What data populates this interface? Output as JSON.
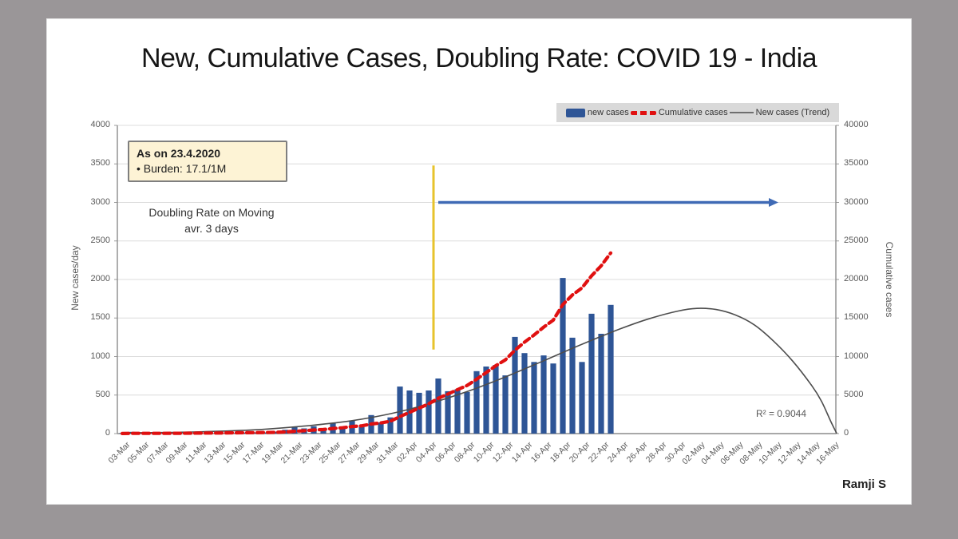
{
  "slide": {
    "title": "New, Cumulative Cases, Doubling Rate: COVID 19 - India",
    "author": "Ramji S"
  },
  "annotation_box": {
    "line1": "As on 23.4.2020",
    "line2": "• Burden: 17.1/1M"
  },
  "doubling_note": {
    "line1": "Doubling Rate on Moving",
    "line2": "avr. 3 days"
  },
  "r_squared_label": "R² = 0.9044",
  "legend": {
    "position": "top-right",
    "items": [
      {
        "label": "new cases",
        "swatch": "blue-bar"
      },
      {
        "label": "Cumulative cases",
        "swatch": "red-dashed-line"
      },
      {
        "label": "New cases (Trend)",
        "swatch": "gray-line"
      }
    ]
  },
  "colors": {
    "bar": "#2e5596",
    "cumulative_line": "#e01010",
    "trend_line": "#4d4d4d",
    "yellow_marker_line": "#e7c32c",
    "arrow": "#3f6ab5",
    "legend_bg": "#d9d9d9",
    "annotation_bg": "#fdf3d5",
    "gridline": "#dcdcdc",
    "axis_text": "#595959",
    "slide_bg": "#ffffff",
    "canvas_bg": "#9a9698"
  },
  "chart_data": {
    "type": "combo (bar + line, dual axis)",
    "title": "New, Cumulative Cases, Doubling Rate: COVID 19 - India",
    "xlabel": "",
    "ylabel_left": "New cases/day",
    "ylabel_right": "Cumulative cases",
    "grid": "horizontal gridlines on",
    "left_axis": {
      "range": [
        0,
        4000
      ],
      "ticks": [
        0,
        500,
        1000,
        1500,
        2000,
        2500,
        3000,
        3500,
        4000
      ]
    },
    "right_axis": {
      "range": [
        0,
        40000
      ],
      "ticks": [
        0,
        5000,
        10000,
        15000,
        20000,
        25000,
        30000,
        35000,
        40000
      ]
    },
    "x_axis": {
      "tick_labels": [
        "03-Mar",
        "05-Mar",
        "07-Mar",
        "09-Mar",
        "11-Mar",
        "13-Mar",
        "15-Mar",
        "17-Mar",
        "19-Mar",
        "21-Mar",
        "23-Mar",
        "25-Mar",
        "27-Mar",
        "29-Mar",
        "31-Mar",
        "02-Apr",
        "04-Apr",
        "06-Apr",
        "08-Apr",
        "10-Apr",
        "12-Apr",
        "14-Apr",
        "16-Apr",
        "18-Apr",
        "20-Apr",
        "22-Apr",
        "24-Apr",
        "26-Apr",
        "28-Apr",
        "30-Apr",
        "02-May",
        "04-May",
        "06-May",
        "08-May",
        "10-May",
        "12-May",
        "14-May",
        "16-May"
      ],
      "label_rotation_deg": -45,
      "days_per_tick": 2
    },
    "dates": [
      "03-Mar",
      "04-Mar",
      "05-Mar",
      "06-Mar",
      "07-Mar",
      "08-Mar",
      "09-Mar",
      "10-Mar",
      "11-Mar",
      "12-Mar",
      "13-Mar",
      "14-Mar",
      "15-Mar",
      "16-Mar",
      "17-Mar",
      "18-Mar",
      "19-Mar",
      "20-Mar",
      "21-Mar",
      "22-Mar",
      "23-Mar",
      "24-Mar",
      "25-Mar",
      "26-Mar",
      "27-Mar",
      "28-Mar",
      "29-Mar",
      "30-Mar",
      "31-Mar",
      "01-Apr",
      "02-Apr",
      "03-Apr",
      "04-Apr",
      "05-Apr",
      "06-Apr",
      "07-Apr",
      "08-Apr",
      "09-Apr",
      "10-Apr",
      "11-Apr",
      "12-Apr",
      "13-Apr",
      "14-Apr",
      "15-Apr",
      "16-Apr",
      "17-Apr",
      "18-Apr",
      "19-Apr",
      "20-Apr",
      "21-Apr",
      "22-Apr",
      "23-Apr"
    ],
    "series": [
      {
        "name": "new cases",
        "type": "bar",
        "axis": "left",
        "values": [
          6,
          23,
          2,
          1,
          3,
          5,
          4,
          6,
          10,
          8,
          8,
          18,
          7,
          12,
          15,
          14,
          25,
          50,
          88,
          67,
          95,
          65,
          135,
          85,
          170,
          85,
          240,
          145,
          210,
          610,
          560,
          530,
          560,
          715,
          550,
          575,
          540,
          810,
          870,
          890,
          755,
          1255,
          1045,
          930,
          1015,
          910,
          2020,
          1245,
          930,
          1555,
          1295,
          1670
        ],
        "values_estimated": true
      },
      {
        "name": "Cumulative cases",
        "type": "line",
        "axis": "right",
        "style": "thick red dashed",
        "values": [
          6,
          29,
          31,
          32,
          35,
          40,
          44,
          50,
          60,
          68,
          76,
          94,
          101,
          113,
          128,
          142,
          167,
          217,
          305,
          372,
          467,
          532,
          667,
          752,
          922,
          1007,
          1247,
          1392,
          1602,
          2212,
          2772,
          3302,
          3862,
          4577,
          5127,
          5702,
          6242,
          7052,
          7922,
          8812,
          9567,
          10822,
          11867,
          12797,
          13812,
          14722,
          16742,
          17987,
          18917,
          20472,
          21767,
          23437
        ],
        "values_estimated": true
      },
      {
        "name": "New cases (Trend)",
        "type": "line",
        "axis": "left",
        "style": "thin dark curve, peaks ~1620 near 30-Apr then falls to 0 by ~15-May",
        "points_day_value": [
          [
            0,
            10
          ],
          [
            5,
            16
          ],
          [
            10,
            30
          ],
          [
            15,
            58
          ],
          [
            20,
            110
          ],
          [
            24,
            168
          ],
          [
            28,
            258
          ],
          [
            32,
            385
          ],
          [
            36,
            545
          ],
          [
            40,
            735
          ],
          [
            44,
            945
          ],
          [
            48,
            1160
          ],
          [
            52,
            1360
          ],
          [
            55,
            1490
          ],
          [
            58,
            1590
          ],
          [
            60,
            1625
          ],
          [
            62,
            1610
          ],
          [
            64,
            1540
          ],
          [
            66,
            1410
          ],
          [
            68,
            1200
          ],
          [
            70,
            940
          ],
          [
            72,
            620
          ],
          [
            73,
            420
          ],
          [
            74,
            150
          ],
          [
            74.6,
            0
          ]
        ],
        "r_squared": 0.9044
      }
    ],
    "annotations": {
      "yellow_vertical_line": {
        "day_index": 32.5,
        "near_date": "04-Apr/05-Apr",
        "value_from_left_axis": 1090,
        "value_to_left_axis": 3480
      },
      "blue_arrow": {
        "direction": "right",
        "value_left_axis": 3000,
        "from_day_index": 33,
        "to_day_index": 68.5
      }
    }
  }
}
